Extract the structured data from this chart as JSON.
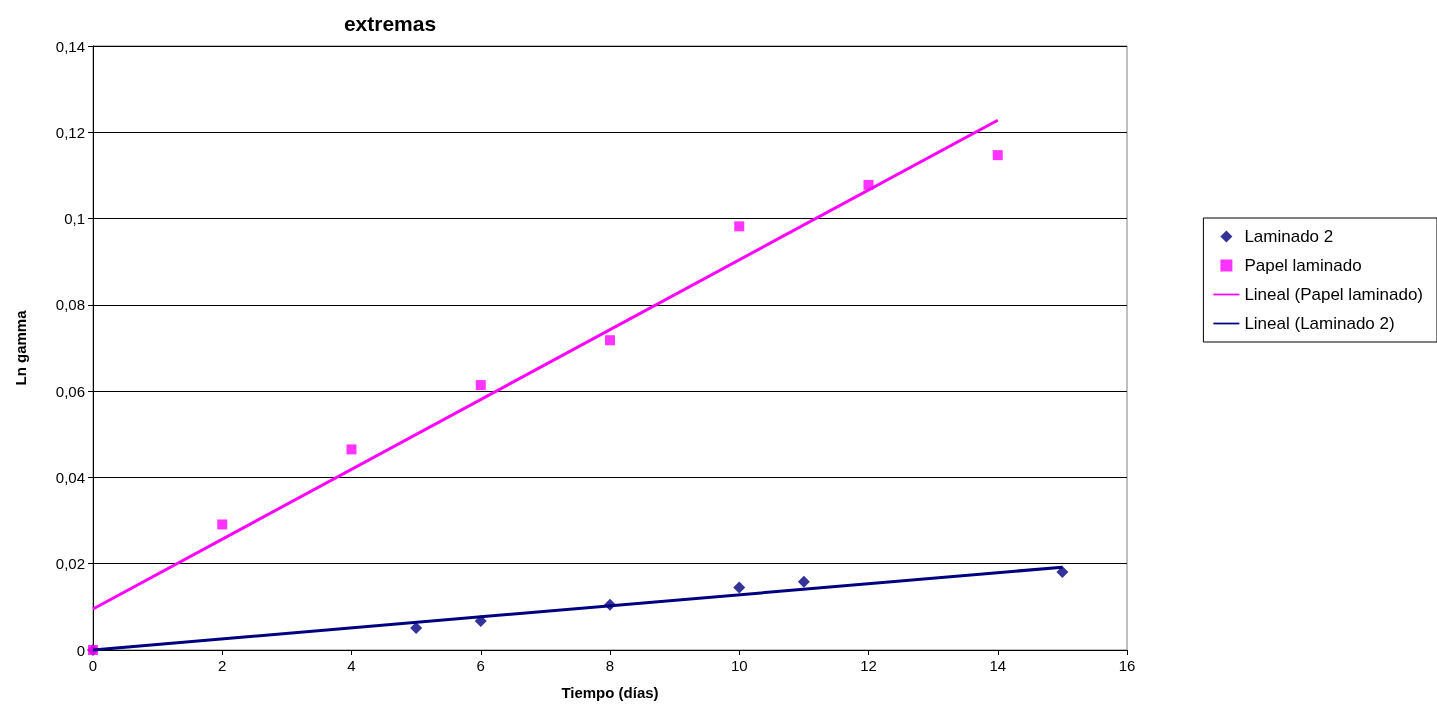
{
  "chart_data": {
    "type": "scatter",
    "title": "extremas",
    "xlabel": "Tiempo (días)",
    "ylabel": "Ln gamma",
    "xlim": [
      0,
      16
    ],
    "xticks": [
      0,
      2,
      4,
      6,
      8,
      10,
      12,
      14,
      16
    ],
    "ylim": [
      0,
      0.14
    ],
    "yticks": [
      {
        "value": 0,
        "label": "0"
      },
      {
        "value": 0.02,
        "label": "0,02"
      },
      {
        "value": 0.04,
        "label": "0,04"
      },
      {
        "value": 0.06,
        "label": "0,06"
      },
      {
        "value": 0.08,
        "label": "0,08"
      },
      {
        "value": 0.1,
        "label": "0,1"
      },
      {
        "value": 0.12,
        "label": "0,12"
      },
      {
        "value": 0.14,
        "label": "0,14"
      }
    ],
    "grid": "y",
    "legend": "right",
    "series": [
      {
        "name": "Laminado 2",
        "marker": "diamond",
        "color": "#000080",
        "x": [
          0,
          5,
          6,
          8,
          10,
          11,
          15
        ],
        "values": [
          0,
          0.0051,
          0.0067,
          0.0105,
          0.0145,
          0.0158,
          0.0181
        ]
      },
      {
        "name": "Papel laminado",
        "marker": "square",
        "color": "#ff00ff",
        "x": [
          0,
          2,
          4,
          6,
          8,
          10,
          12,
          14
        ],
        "values": [
          0,
          0.0291,
          0.0465,
          0.0614,
          0.0718,
          0.0982,
          0.1078,
          0.1147
        ]
      },
      {
        "name": "Lineal (Papel laminado)",
        "type": "line",
        "marker": "none",
        "color": "#ff00ff",
        "x": [
          0,
          14
        ],
        "values": [
          0.0095,
          0.1228
        ]
      },
      {
        "name": "Lineal (Laminado 2)",
        "type": "line",
        "marker": "none",
        "color": "#000080",
        "x": [
          0,
          15
        ],
        "values": [
          0,
          0.0192
        ]
      }
    ]
  }
}
